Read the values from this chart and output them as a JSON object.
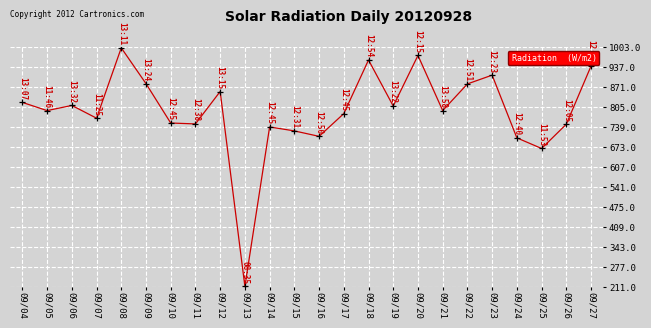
{
  "title": "Solar Radiation Daily 20120928",
  "copyright": "Copyright 2012 Cartronics.com",
  "legend_label": "Radiation  (W/m2)",
  "background_color": "#d4d4d4",
  "plot_bg_color": "#d4d4d4",
  "line_color": "#cc0000",
  "marker_color": "#000000",
  "ylim": [
    211.0,
    1003.0
  ],
  "yticks": [
    211.0,
    277.0,
    343.0,
    409.0,
    475.0,
    541.0,
    607.0,
    673.0,
    739.0,
    805.0,
    871.0,
    937.0,
    1003.0
  ],
  "dates": [
    "09/04",
    "09/05",
    "09/06",
    "09/07",
    "09/08",
    "09/09",
    "09/10",
    "09/11",
    "09/12",
    "09/13",
    "09/14",
    "09/15",
    "09/16",
    "09/17",
    "09/18",
    "09/19",
    "09/20",
    "09/21",
    "09/22",
    "09/23",
    "09/24",
    "09/25",
    "09/26",
    "09/27"
  ],
  "values": [
    820,
    793,
    810,
    768,
    1000,
    882,
    752,
    749,
    856,
    213,
    739,
    726,
    708,
    783,
    960,
    808,
    975,
    793,
    881,
    910,
    703,
    668,
    748,
    940
  ],
  "labels": [
    "13:07",
    "11:46",
    "13:32",
    "11:25",
    "13:11",
    "13:24",
    "12:45",
    "12:38",
    "13:15",
    "08:35",
    "12:45",
    "12:31",
    "12:50",
    "12:45",
    "12:54",
    "13:22",
    "12:15",
    "13:58",
    "12:51",
    "12:23",
    "12:40",
    "11:53",
    "12:05",
    "12:45"
  ]
}
